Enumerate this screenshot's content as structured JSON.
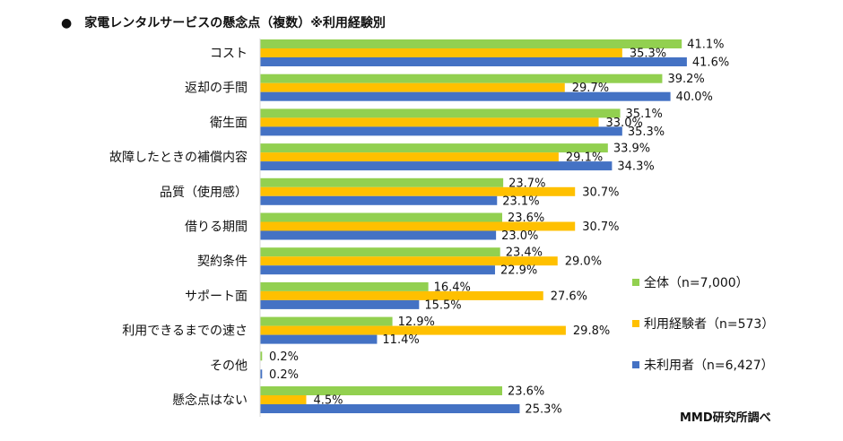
{
  "header": {
    "bullet": "●",
    "title": "家電レンタルサービスの懸念点（複数）※利用経験別"
  },
  "footer": {
    "credit": "MMD研究所調べ"
  },
  "chart_data": {
    "type": "bar",
    "orientation": "horizontal",
    "title": "家電レンタルサービスの懸念点（複数）※利用経験別",
    "categories": [
      "コスト",
      "返却の手間",
      "衛生面",
      "故障したときの補償内容",
      "品質（使用感）",
      "借りる期間",
      "契約条件",
      "サポート面",
      "利用できるまでの速さ",
      "その他",
      "懸念点はない"
    ],
    "series": [
      {
        "name": "全体（n=7,000）",
        "color": "#92d050",
        "values": [
          41.1,
          39.2,
          35.1,
          33.9,
          23.7,
          23.6,
          23.4,
          16.4,
          12.9,
          0.2,
          23.6
        ]
      },
      {
        "name": "利用経験者（n=573）",
        "color": "#ffc000",
        "values": [
          35.3,
          29.7,
          33.0,
          29.1,
          30.7,
          30.7,
          29.0,
          27.6,
          29.8,
          null,
          4.5
        ]
      },
      {
        "name": "未利用者（n=6,427）",
        "color": "#4472c4",
        "values": [
          41.6,
          40.0,
          35.3,
          34.3,
          23.1,
          23.0,
          22.9,
          15.5,
          11.4,
          0.2,
          25.3
        ]
      }
    ],
    "value_suffix": "%",
    "legend_position": "right",
    "grid": false
  }
}
